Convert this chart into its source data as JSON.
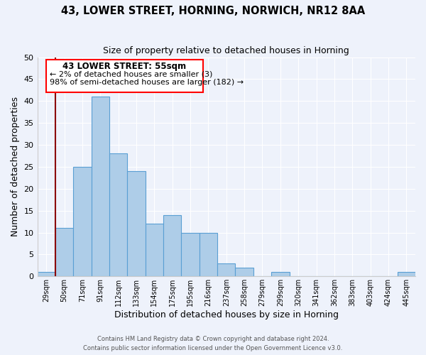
{
  "title": "43, LOWER STREET, HORNING, NORWICH, NR12 8AA",
  "subtitle": "Size of property relative to detached houses in Horning",
  "xlabel": "Distribution of detached houses by size in Horning",
  "ylabel": "Number of detached properties",
  "bar_color": "#aecde8",
  "bar_edge_color": "#5a9fd4",
  "background_color": "#eef2fb",
  "grid_color": "#ffffff",
  "bin_labels": [
    "29sqm",
    "50sqm",
    "71sqm",
    "91sqm",
    "112sqm",
    "133sqm",
    "154sqm",
    "175sqm",
    "195sqm",
    "216sqm",
    "237sqm",
    "258sqm",
    "279sqm",
    "299sqm",
    "320sqm",
    "341sqm",
    "362sqm",
    "383sqm",
    "403sqm",
    "424sqm",
    "445sqm"
  ],
  "bar_heights": [
    1,
    11,
    25,
    41,
    28,
    24,
    12,
    14,
    10,
    10,
    3,
    2,
    0,
    1,
    0,
    0,
    0,
    0,
    0,
    0,
    1
  ],
  "ylim": [
    0,
    50
  ],
  "yticks": [
    0,
    5,
    10,
    15,
    20,
    25,
    30,
    35,
    40,
    45,
    50
  ],
  "red_line_x": 1.0,
  "annotation_title": "43 LOWER STREET: 55sqm",
  "annotation_line1": "← 2% of detached houses are smaller (3)",
  "annotation_line2": "98% of semi-detached houses are larger (182) →",
  "footnote1": "Contains HM Land Registry data © Crown copyright and database right 2024.",
  "footnote2": "Contains public sector information licensed under the Open Government Licence v3.0."
}
